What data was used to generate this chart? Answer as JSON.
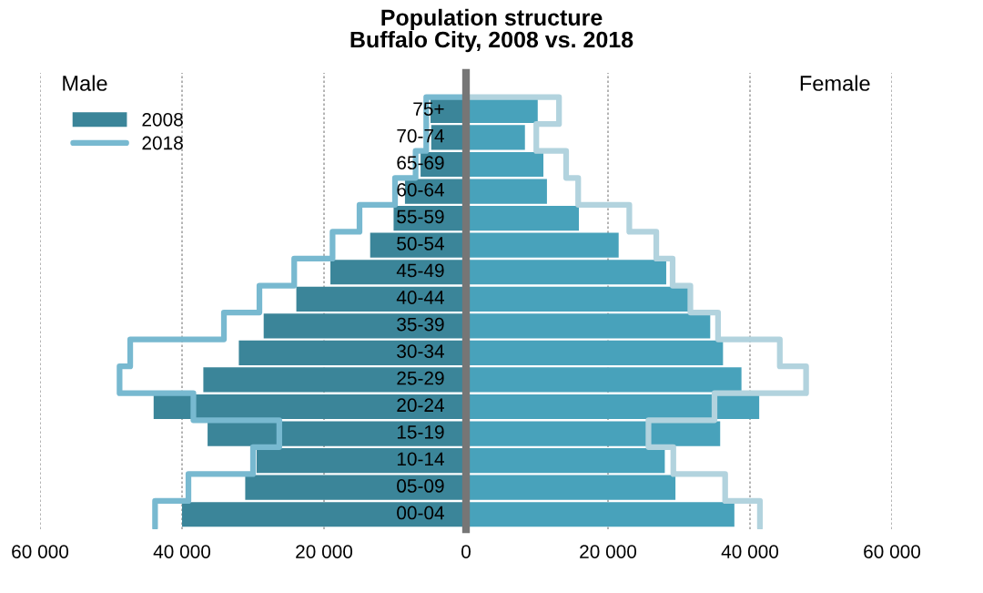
{
  "chart_data": {
    "type": "bar",
    "orientation": "horizontal",
    "title": "Population structure\nBuffalo City, 2008 vs. 2018",
    "categories": [
      "75+",
      "70-74",
      "65-69",
      "60-64",
      "55-59",
      "50-54",
      "45-49",
      "40-44",
      "35-39",
      "30-34",
      "25-29",
      "20-24",
      "15-19",
      "10-14",
      "05-09",
      "00-04"
    ],
    "series": [
      {
        "name": "2008",
        "color": "#3b8599",
        "values": [
          -5000,
          -4900,
          -6400,
          -8600,
          -10200,
          -13500,
          -19100,
          -23900,
          -28500,
          -32000,
          -37000,
          -44000,
          -36400,
          -29500,
          -31100,
          -40000
        ]
      },
      {
        "color": "#48a2bb",
        "values": [
          10100,
          8300,
          10900,
          11400,
          15900,
          21500,
          28200,
          31300,
          34400,
          36200,
          38800,
          41300,
          35800,
          28000,
          29500,
          37800
        ]
      },
      {
        "name": "2018",
        "type": "step",
        "color": "#78b9d0",
        "values": [
          -5600,
          -5600,
          -7100,
          -10000,
          -15000,
          -18800,
          -24200,
          -29100,
          -34100,
          -47300,
          -48800,
          -38400,
          -26300,
          -30000,
          -39100,
          -43800
        ]
      },
      {
        "type": "step",
        "color": "#b2d3de",
        "values": [
          13100,
          9900,
          14100,
          15800,
          23000,
          26800,
          29100,
          31600,
          35500,
          44200,
          47900,
          35000,
          25700,
          29200,
          36500,
          41400
        ]
      }
    ],
    "xlim": [
      -60000,
      60000
    ],
    "xticks": [
      {
        "value": -60000,
        "label": "60 000"
      },
      {
        "value": -40000,
        "label": "40 000"
      },
      {
        "value": -20000,
        "label": "20 000"
      },
      0,
      {
        "value": 20000,
        "label": "20 000"
      },
      {
        "value": 40000,
        "label": "40 000"
      },
      {
        "value": 60000,
        "label": "60 000"
      }
    ],
    "annotations": [
      "Male",
      "Female"
    ],
    "grid": "x",
    "legend": "top left",
    "stacked": true
  }
}
